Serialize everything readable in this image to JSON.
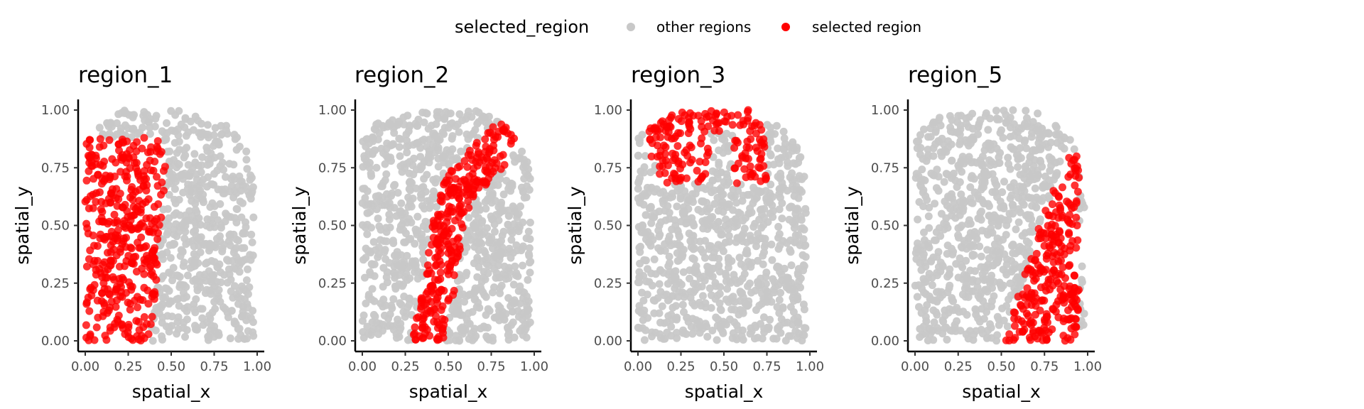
{
  "legend": {
    "title": "selected_region",
    "entries": [
      {
        "label": "other regions",
        "color": "#c8c8c8"
      },
      {
        "label": "selected region",
        "color": "#ff0000"
      }
    ]
  },
  "chart_data": [
    {
      "type": "scatter",
      "title": "region_1",
      "xlabel": "spatial_x",
      "ylabel": "spatial_y",
      "xlim": [
        0,
        1
      ],
      "ylim": [
        0,
        1
      ],
      "xticks": [
        "0.00",
        "0.25",
        "0.50",
        "0.75",
        "1.00"
      ],
      "yticks": [
        "0.00",
        "0.25",
        "0.50",
        "0.75",
        "1.00"
      ],
      "background_shape": "rounded_slab",
      "selected_points_approx": 400,
      "selected_area": {
        "kind": "band",
        "y_range": [
          0.0,
          0.88
        ],
        "x_left": 0.0,
        "x_right": [
          [
            0.0,
            0.37
          ],
          [
            0.25,
            0.42
          ],
          [
            0.5,
            0.44
          ],
          [
            0.75,
            0.48
          ],
          [
            0.88,
            0.42
          ]
        ]
      }
    },
    {
      "type": "scatter",
      "title": "region_2",
      "xlabel": "spatial_x",
      "ylabel": "spatial_y",
      "xlim": [
        0,
        1
      ],
      "ylim": [
        0,
        1
      ],
      "xticks": [
        "0.00",
        "0.25",
        "0.50",
        "0.75",
        "1.00"
      ],
      "yticks": [
        "0.00",
        "0.25",
        "0.50",
        "0.75",
        "1.00"
      ],
      "background_shape": "rounded_slab",
      "selected_points_approx": 300,
      "selected_area": {
        "kind": "curved_band",
        "path": [
          [
            0.38,
            0.0
          ],
          [
            0.45,
            0.25
          ],
          [
            0.5,
            0.5
          ],
          [
            0.55,
            0.65
          ],
          [
            0.8,
            0.85
          ]
        ],
        "half_width": 0.09
      }
    },
    {
      "type": "scatter",
      "title": "region_3",
      "xlabel": "spatial_x",
      "ylabel": "spatial_y",
      "xlim": [
        0,
        1
      ],
      "ylim": [
        0,
        1
      ],
      "xticks": [
        "0.00",
        "0.25",
        "0.50",
        "0.75",
        "1.00"
      ],
      "yticks": [
        "0.00",
        "0.25",
        "0.50",
        "0.75",
        "1.00"
      ],
      "background_shape": "rounded_slab",
      "selected_points_approx": 180,
      "selected_area": {
        "kind": "arc",
        "y_range": [
          0.68,
          1.0
        ],
        "x_range": [
          0.05,
          0.75
        ]
      }
    },
    {
      "type": "scatter",
      "title": "region_5",
      "xlabel": "spatial_x",
      "ylabel": "spatial_y",
      "xlim": [
        0,
        1
      ],
      "ylim": [
        0,
        1
      ],
      "xticks": [
        "0.00",
        "0.25",
        "0.50",
        "0.75",
        "1.00"
      ],
      "yticks": [
        "0.00",
        "0.25",
        "0.50",
        "0.75",
        "1.00"
      ],
      "background_shape": "rounded_slab",
      "selected_points_approx": 260,
      "selected_area": {
        "kind": "wedge",
        "y_range": [
          0.0,
          0.8
        ],
        "x_left": [
          [
            0.0,
            0.52
          ],
          [
            0.25,
            0.62
          ],
          [
            0.5,
            0.72
          ],
          [
            0.75,
            0.85
          ],
          [
            0.8,
            0.88
          ]
        ],
        "x_right": 0.95
      }
    }
  ]
}
